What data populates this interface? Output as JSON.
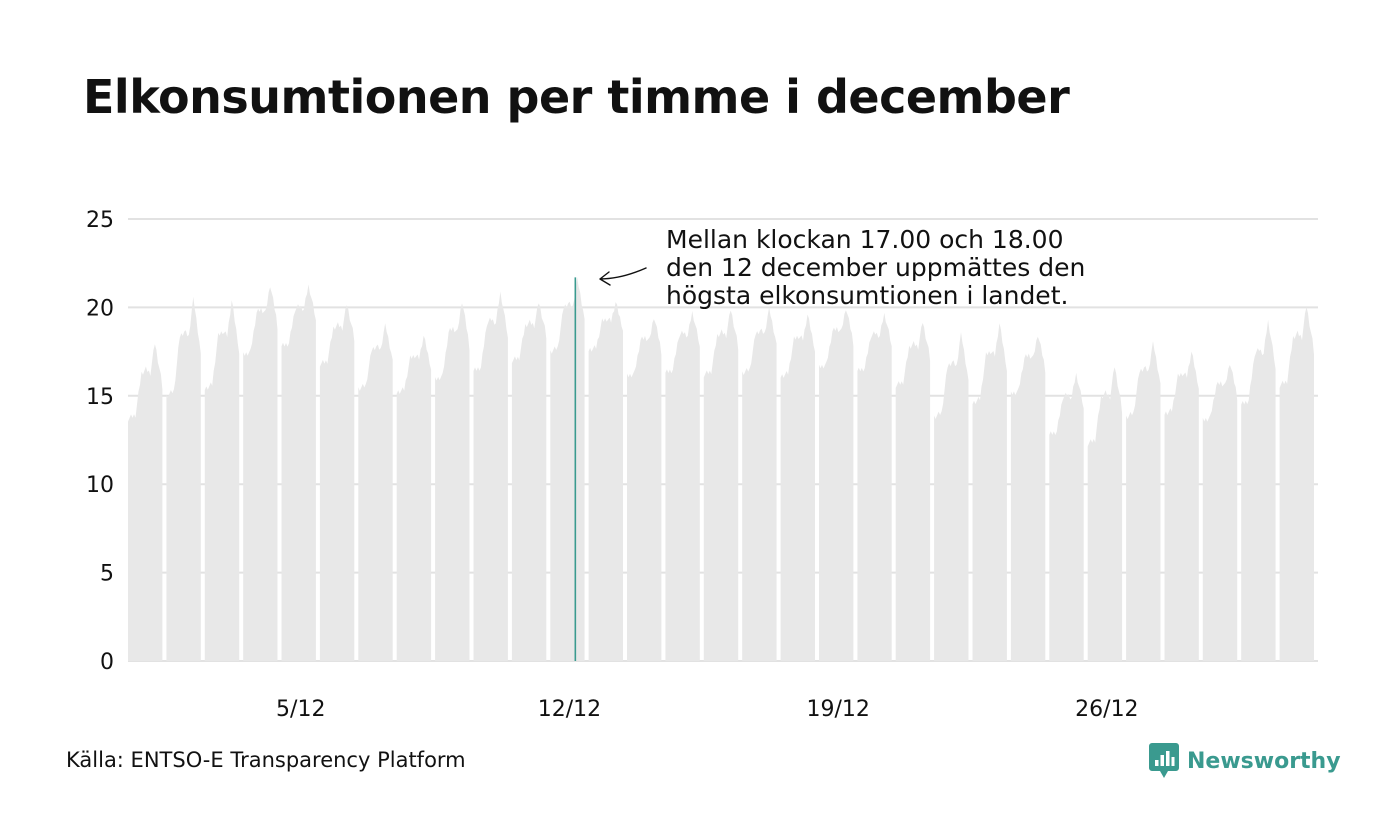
{
  "title": "Elkonsumtionen per timme i december",
  "annotation": {
    "lines": [
      "Mellan klockan 17.00 och 18.00",
      "den 12 december uppmättes den",
      "högsta elkonsumtionen i landet."
    ]
  },
  "source": "Källa: ENTSO-E Transparency Platform",
  "brand": {
    "name": "Newsworthy",
    "color": "#3a9a8f",
    "icon": "newsworthy-bar-chart-icon"
  },
  "colors": {
    "bars": "#e8e8e8",
    "highlight": "#3a9a8f",
    "grid": "#e2e2e2",
    "text": "#111111"
  },
  "chart_data": {
    "type": "area",
    "title": "Elkonsumtionen per timme i december",
    "xlabel": "",
    "ylabel": "",
    "ylim": [
      0,
      25
    ],
    "yticks": [
      0,
      5,
      10,
      15,
      20,
      25
    ],
    "x_tick_days": [
      5,
      12,
      19,
      26
    ],
    "x_tick_labels": [
      "5/12",
      "12/12",
      "19/12",
      "26/12"
    ],
    "grid": "horizontal",
    "days": [
      1,
      2,
      3,
      4,
      5,
      6,
      7,
      8,
      9,
      10,
      11,
      12,
      13,
      14,
      15,
      16,
      17,
      18,
      19,
      20,
      21,
      22,
      23,
      24,
      25,
      26,
      27,
      28,
      29,
      30,
      31
    ],
    "daily_min": [
      13.7,
      15.0,
      15.4,
      17.3,
      17.8,
      16.8,
      15.4,
      15.2,
      15.9,
      16.4,
      17.0,
      17.5,
      17.6,
      16.1,
      16.3,
      16.2,
      16.3,
      16.1,
      16.6,
      16.4,
      15.6,
      13.8,
      14.6,
      15.1,
      12.8,
      12.3,
      13.8,
      14.0,
      13.6,
      14.5,
      15.6
    ],
    "daily_max": [
      18.0,
      20.6,
      20.4,
      21.3,
      21.3,
      20.2,
      19.1,
      18.4,
      20.4,
      20.9,
      20.3,
      21.7,
      20.3,
      19.5,
      19.8,
      19.9,
      20.0,
      19.6,
      20.0,
      19.7,
      19.2,
      18.6,
      19.1,
      18.5,
      16.3,
      16.7,
      18.1,
      17.5,
      16.9,
      19.3,
      20.1
    ],
    "peak": {
      "value": 21.7,
      "day": 12,
      "hour_start": "17.00",
      "hour_end": "18.00"
    }
  }
}
